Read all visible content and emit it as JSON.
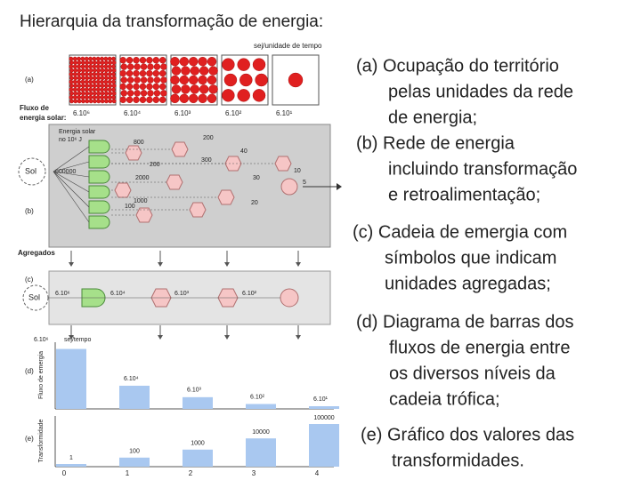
{
  "title": "Hierarquia da transformação de energia:",
  "captions": [
    {
      "lines": [
        "(a) Ocupação do território",
        "pelas unidades da rede",
        "de energia;"
      ]
    },
    {
      "lines": [
        "(b) Rede de energia",
        "incluindo transformação",
        "e retroalimentação;"
      ]
    },
    {
      "lines": [
        "(c) Cadeia de emergia com",
        "símbolos que indicam",
        "unidades agregadas;"
      ]
    },
    {
      "lines": [
        "(d) Diagrama de barras dos",
        "fluxos de energia entre",
        "os diversos níveis da",
        "cadeia trófica;"
      ]
    },
    {
      "lines": [
        "(e) Gráfico dos valores das",
        "transformidades."
      ]
    }
  ],
  "figure": {
    "panel_a": {
      "label": "(a)",
      "top_label": "sej/unidade de tempo",
      "flux_label": [
        "Fluxo de",
        "energia solar:"
      ],
      "box_labels": [
        "6.10⁶",
        "6.10⁴",
        "6.10³",
        "6.10²",
        "6.10¹"
      ]
    },
    "panel_b": {
      "label": "(b)",
      "source": "Sol",
      "source_value": "600000",
      "input_label": [
        "Energia solar",
        "no 10⁶ J"
      ],
      "flow_labels": [
        "800",
        "200",
        "100",
        "2000",
        "1000",
        "200",
        "300",
        "40",
        "30",
        "20",
        "10",
        "5"
      ]
    },
    "aggregates": "Agregados",
    "panel_c": {
      "label": "(c)",
      "source": "Sol",
      "chain_labels": [
        "6.10⁶",
        "6.10⁴",
        "6.10³",
        "6.10²"
      ]
    },
    "panel_d": {
      "label": "(d)",
      "axis_title": "Fluxo de emergia",
      "unit": "sej/tempo",
      "values": [
        6000000,
        60000,
        6000,
        600,
        60
      ],
      "value_labels": [
        "6.10⁶",
        "6.10⁴",
        "6.10³",
        "6.10²",
        "6.10¹"
      ]
    },
    "panel_e": {
      "label": "(e)",
      "axis_title": "Transformidade",
      "values": [
        1,
        100,
        1000,
        10000,
        100000
      ],
      "categories": [
        0,
        1,
        2,
        3,
        4
      ]
    }
  }
}
